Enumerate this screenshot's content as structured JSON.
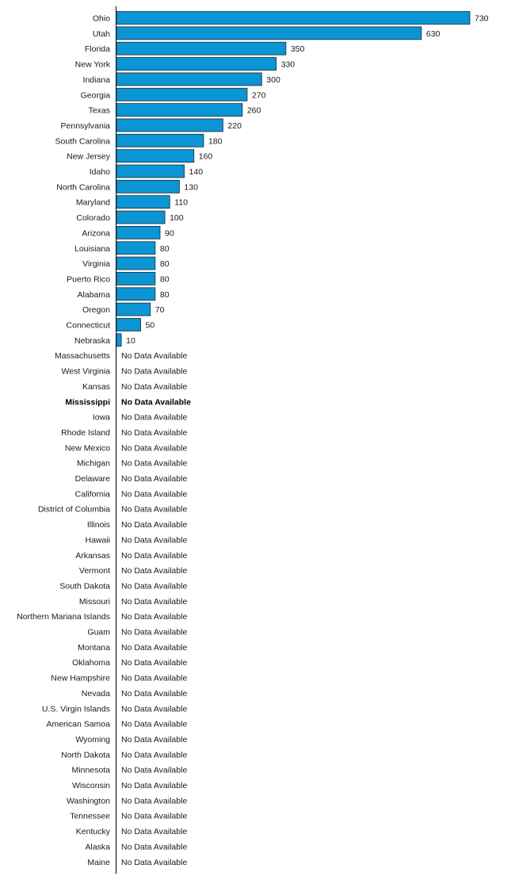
{
  "chart_data": {
    "type": "bar",
    "orientation": "horizontal",
    "bar_color": "#0b95d4",
    "bar_stroke": "#1f2a33",
    "axis_color": "#000000",
    "missing_label": "No Data Available",
    "highlight": "Mississippi",
    "grid": false,
    "categories": [
      "Ohio",
      "Utah",
      "Florida",
      "New York",
      "Indiana",
      "Georgia",
      "Texas",
      "Pennsylvania",
      "South Carolina",
      "New Jersey",
      "Idaho",
      "North Carolina",
      "Maryland",
      "Colorado",
      "Arizona",
      "Louisiana",
      "Virginia",
      "Puerto Rico",
      "Alabama",
      "Oregon",
      "Connecticut",
      "Nebraska",
      "Massachusetts",
      "West Virginia",
      "Kansas",
      "Mississippi",
      "Iowa",
      "Rhode Island",
      "New Mexico",
      "Michigan",
      "Delaware",
      "California",
      "District of Columbia",
      "Illinois",
      "Hawaii",
      "Arkansas",
      "Vermont",
      "South Dakota",
      "Missouri",
      "Northern Mariana Islands",
      "Guam",
      "Montana",
      "Oklahoma",
      "New Hampshire",
      "Nevada",
      "U.S. Virgin Islands",
      "American Samoa",
      "Wyoming",
      "North Dakota",
      "Minnesota",
      "Wisconsin",
      "Washington",
      "Tennessee",
      "Kentucky",
      "Alaska",
      "Maine"
    ],
    "values": [
      730,
      630,
      350,
      330,
      300,
      270,
      260,
      220,
      180,
      160,
      140,
      130,
      110,
      100,
      90,
      80,
      80,
      80,
      80,
      70,
      50,
      10,
      null,
      null,
      null,
      null,
      null,
      null,
      null,
      null,
      null,
      null,
      null,
      null,
      null,
      null,
      null,
      null,
      null,
      null,
      null,
      null,
      null,
      null,
      null,
      null,
      null,
      null,
      null,
      null,
      null,
      null,
      null,
      null,
      null,
      null
    ],
    "xlim": [
      0,
      730
    ]
  }
}
